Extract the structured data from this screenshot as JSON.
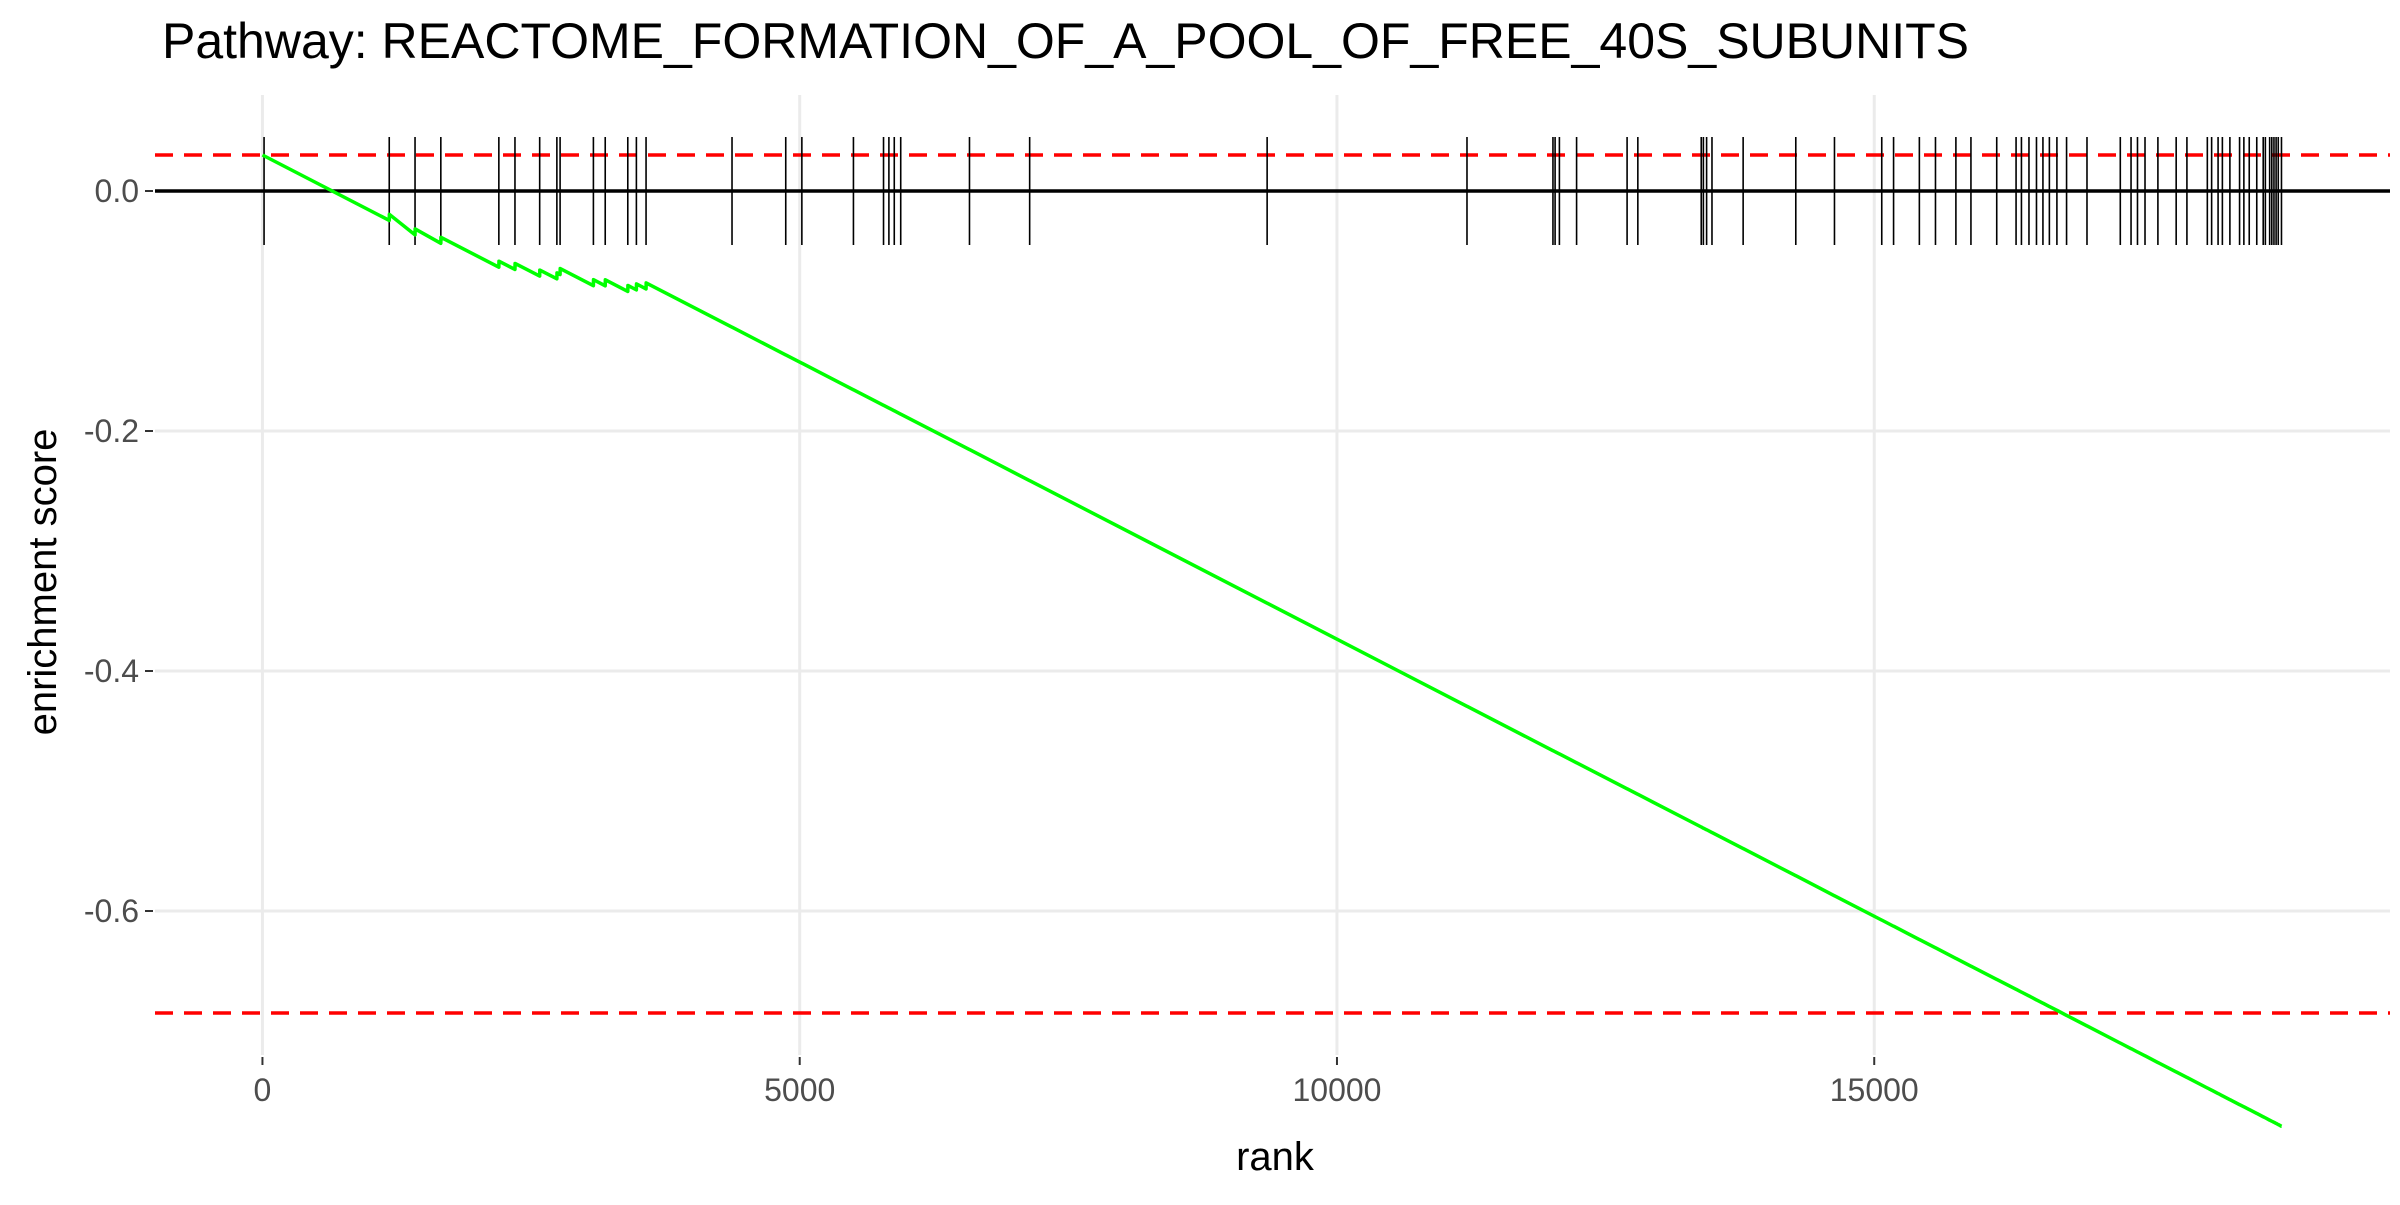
{
  "chart_data": {
    "type": "line",
    "title": "Pathway: REACTOME_FORMATION_OF_A_POOL_OF_FREE_40S_SUBUNITS",
    "xlabel": "rank",
    "ylabel": "enrichment score",
    "xlim": [
      -1000,
      19800
    ],
    "ylim": [
      -0.72,
      0.08
    ],
    "x_ticks": [
      0,
      5000,
      10000,
      15000
    ],
    "y_ticks": [
      -0.6,
      -0.4,
      -0.2,
      0.0
    ],
    "x_tick_labels": [
      "0",
      "5000",
      "10000",
      "15000"
    ],
    "y_tick_labels": [
      "-0.6",
      "-0.4",
      "-0.2",
      "0.0"
    ],
    "grid": true,
    "legend": "none",
    "colors": {
      "curve": "#00ff00",
      "threshold": "#ff0000",
      "baseline": "#000000",
      "ticks": "#000000",
      "grid": "#ebebeb"
    },
    "hlines": [
      {
        "y": 0.0,
        "style": "solid"
      },
      {
        "y": 0.03,
        "style": "dashed"
      },
      {
        "y": -0.685,
        "style": "dashed"
      }
    ],
    "tick_marks_y": [
      -0.045,
      0.045
    ],
    "gene_ranks": [
      15,
      1180,
      1420,
      1660,
      2200,
      2350,
      2580,
      2740,
      2770,
      3080,
      3190,
      3400,
      3480,
      3570,
      4370,
      4870,
      5020,
      5500,
      5780,
      5830,
      5880,
      5940,
      6580,
      7140,
      9350,
      11210,
      12010,
      12030,
      12070,
      12230,
      12700,
      12800,
      13390,
      13410,
      13440,
      13490,
      13780,
      14270,
      14630,
      15070,
      15180,
      15420,
      15570,
      15760,
      15900,
      16140,
      16320,
      16370,
      16440,
      16510,
      16570,
      16630,
      16700,
      16790,
      16980,
      17290,
      17390,
      17450,
      17520,
      17640,
      17810,
      17910,
      18100,
      18140,
      18200,
      18240,
      18310,
      18400,
      18440,
      18490,
      18560,
      18620,
      18640,
      18680,
      18700,
      18720,
      18740,
      18760,
      18790
    ],
    "curve": {
      "x": [
        0,
        1180,
        1181,
        1420,
        1421,
        1660,
        1661,
        2200,
        2201,
        2350,
        2351,
        2580,
        2581,
        2740,
        2741,
        2770,
        2771,
        3080,
        3081,
        3190,
        3191,
        3400,
        3401,
        3480,
        3481,
        3570,
        3571,
        4370,
        4371,
        4870,
        4871,
        5020,
        5021,
        5500,
        5501,
        5780,
        5781,
        5830,
        5831,
        5880,
        5881,
        5940,
        5941,
        6580,
        6581,
        7140,
        7141,
        9350,
        9351,
        11210,
        11211,
        12010,
        12011,
        12030,
        12031,
        12070,
        12071,
        12230,
        12231,
        12700,
        12701,
        12800,
        12801,
        13390,
        13391,
        13410,
        13411,
        13440,
        13441,
        13490,
        13491,
        13780,
        13781,
        14270,
        14271,
        14630,
        14631,
        15070,
        15071,
        15180,
        15181,
        15420,
        15421,
        15570,
        15571,
        15760,
        15761,
        15900,
        15901,
        16140,
        16141,
        16320,
        16321,
        16370,
        16371,
        16440,
        16441,
        16510,
        16511,
        16570,
        16571,
        16630,
        16631,
        16700,
        16701,
        16790,
        16791,
        16980,
        16981,
        17290,
        17291,
        17390,
        17391,
        17450,
        17451,
        17520,
        17521,
        17640,
        17641,
        17810,
        17811,
        17910,
        17911,
        18100,
        18101,
        18140,
        18141,
        18200,
        18201,
        18240,
        18241,
        18310,
        18311,
        18400,
        18401,
        18440,
        18441,
        18490,
        18491,
        18560,
        18561,
        18620,
        18621,
        18640,
        18641,
        18680,
        18681,
        18700,
        18701,
        18720,
        18721,
        18740,
        18741,
        18760,
        18761,
        18790,
        18791
      ],
      "y": [
        0.03,
        -0.0245,
        -0.0195,
        -0.0366,
        -0.0316,
        -0.0436,
        -0.0386,
        -0.0635,
        -0.0585,
        -0.0654,
        -0.0604,
        -0.0709,
        -0.0659,
        -0.0732,
        -0.0682,
        -0.0696,
        -0.0646,
        -0.0789,
        -0.0739,
        -0.079,
        -0.074,
        -0.0837,
        -0.0787,
        -0.0824,
        -0.0774,
        -0.0816,
        -0.0766,
        -0.1135,
        -0.1135,
        -0.1366,
        -0.1366,
        -0.1435,
        -0.1435,
        -0.1657,
        -0.1657,
        -0.1786,
        -0.1786,
        -0.1809,
        -0.1809,
        -0.1832,
        -0.1832,
        -0.186,
        -0.186,
        -0.2155,
        -0.2155,
        -0.2414,
        -0.2414,
        -0.3435,
        -0.3435,
        -0.4294,
        -0.4294,
        -0.4664,
        -0.4664,
        -0.4673,
        -0.4673,
        -0.4691,
        -0.4691,
        -0.4765,
        -0.4765,
        -0.4982,
        -0.4982,
        -0.5028,
        -0.5028,
        -0.53,
        -0.53,
        -0.531,
        -0.531,
        -0.5323,
        -0.5323,
        -0.5346,
        -0.5346,
        -0.548,
        -0.548,
        -0.5706,
        -0.5706,
        -0.5873,
        -0.5873,
        -0.6076,
        -0.6076,
        -0.6127,
        -0.6127,
        -0.6238,
        -0.6238,
        -0.6307,
        -0.6307,
        -0.6395,
        -0.6395,
        -0.646,
        -0.646,
        -0.657,
        -0.657,
        -0.6653,
        -0.6653,
        -0.6676,
        -0.6676,
        -0.6708,
        -0.6708,
        -0.6741,
        -0.6741,
        -0.6768,
        -0.6768,
        -0.6796,
        -0.6796,
        -0.6828,
        -0.6828,
        -0.687,
        -0.687,
        -0.6958,
        -0.6958,
        -0.7101,
        -0.7101,
        -0.7147,
        -0.7147,
        -0.7175,
        -0.7175,
        -0.7207,
        -0.7207,
        -0.7263,
        -0.7263,
        -0.7341,
        -0.7341,
        -0.7387,
        -0.7387,
        -0.7475,
        -0.7475,
        -0.7493,
        -0.7493,
        -0.7521,
        -0.7521,
        -0.754,
        -0.754,
        -0.7572,
        -0.7572,
        -0.7614,
        -0.7614,
        -0.7632,
        -0.7632,
        -0.7655,
        -0.7655,
        -0.7687,
        -0.7687,
        -0.7715,
        -0.7715,
        -0.7724,
        -0.7724,
        -0.7743,
        -0.7743,
        -0.7752,
        -0.7752,
        -0.7761,
        -0.7761,
        -0.777,
        -0.777,
        -0.778,
        -0.778,
        -0.7794,
        -0.7794
      ]
    }
  }
}
